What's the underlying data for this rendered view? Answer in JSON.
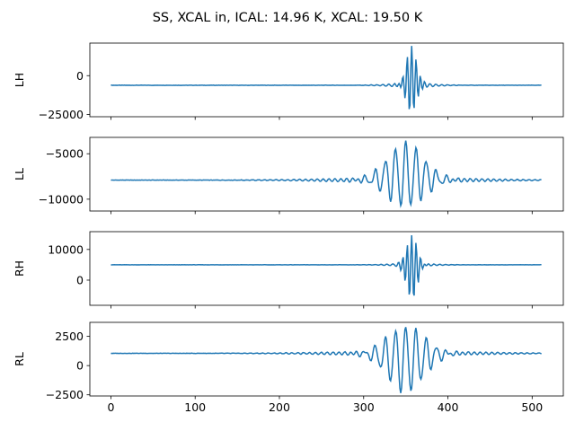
{
  "figure": {
    "title": "SS, XCAL in, ICAL: 14.96 K, XCAL: 19.50 K"
  },
  "chart_data": [
    {
      "type": "line",
      "ylabel": "LH",
      "xlim": [
        -25,
        537
      ],
      "ylim": [
        -26500,
        21000
      ],
      "yticks": [
        -25000,
        0
      ],
      "ytick_labels": [
        "−25000",
        "0"
      ],
      "baseline": -6200,
      "envelope": {
        "center": 357,
        "peak": 18200,
        "trough": -24200,
        "width": 6.5,
        "freq": 0.44,
        "ripple": 1200
      },
      "series": [
        {
          "color": "#1f77b4"
        }
      ]
    },
    {
      "type": "line",
      "ylabel": "LL",
      "xlim": [
        -25,
        537
      ],
      "ylim": [
        -11300,
        -3200
      ],
      "yticks": [
        -10000,
        -5000
      ],
      "ytick_labels": [
        "−10000",
        "−5000"
      ],
      "baseline": -7900,
      "envelope": {
        "center": 350,
        "peak": -3800,
        "trough": -10900,
        "width": 22,
        "freq": 0.19,
        "ripple": 250
      },
      "series": [
        {
          "color": "#1f77b4"
        }
      ]
    },
    {
      "type": "line",
      "ylabel": "RH",
      "xlim": [
        -25,
        537
      ],
      "ylim": [
        -8200,
        15800
      ],
      "yticks": [
        0,
        10000
      ],
      "ytick_labels": [
        "0",
        "10000"
      ],
      "baseline": 5000,
      "envelope": {
        "center": 357,
        "peak": 14500,
        "trough": -7000,
        "width": 6.5,
        "freq": 0.44,
        "ripple": 400
      },
      "series": [
        {
          "color": "#1f77b4"
        }
      ]
    },
    {
      "type": "line",
      "ylabel": "RL",
      "xlim": [
        -25,
        537
      ],
      "ylim": [
        -2600,
        3700
      ],
      "yticks": [
        -2500,
        0,
        2500
      ],
      "ytick_labels": [
        "−2500",
        "0",
        "2500"
      ],
      "baseline": 1050,
      "envelope": {
        "center": 350,
        "peak": 3400,
        "trough": -2300,
        "width": 22,
        "freq": 0.19,
        "ripple": 180
      },
      "series": [
        {
          "color": "#1f77b4"
        }
      ]
    }
  ],
  "xaxis": {
    "ticks": [
      0,
      100,
      200,
      300,
      400,
      500
    ],
    "tick_labels": [
      "0",
      "100",
      "200",
      "300",
      "400",
      "500"
    ]
  }
}
